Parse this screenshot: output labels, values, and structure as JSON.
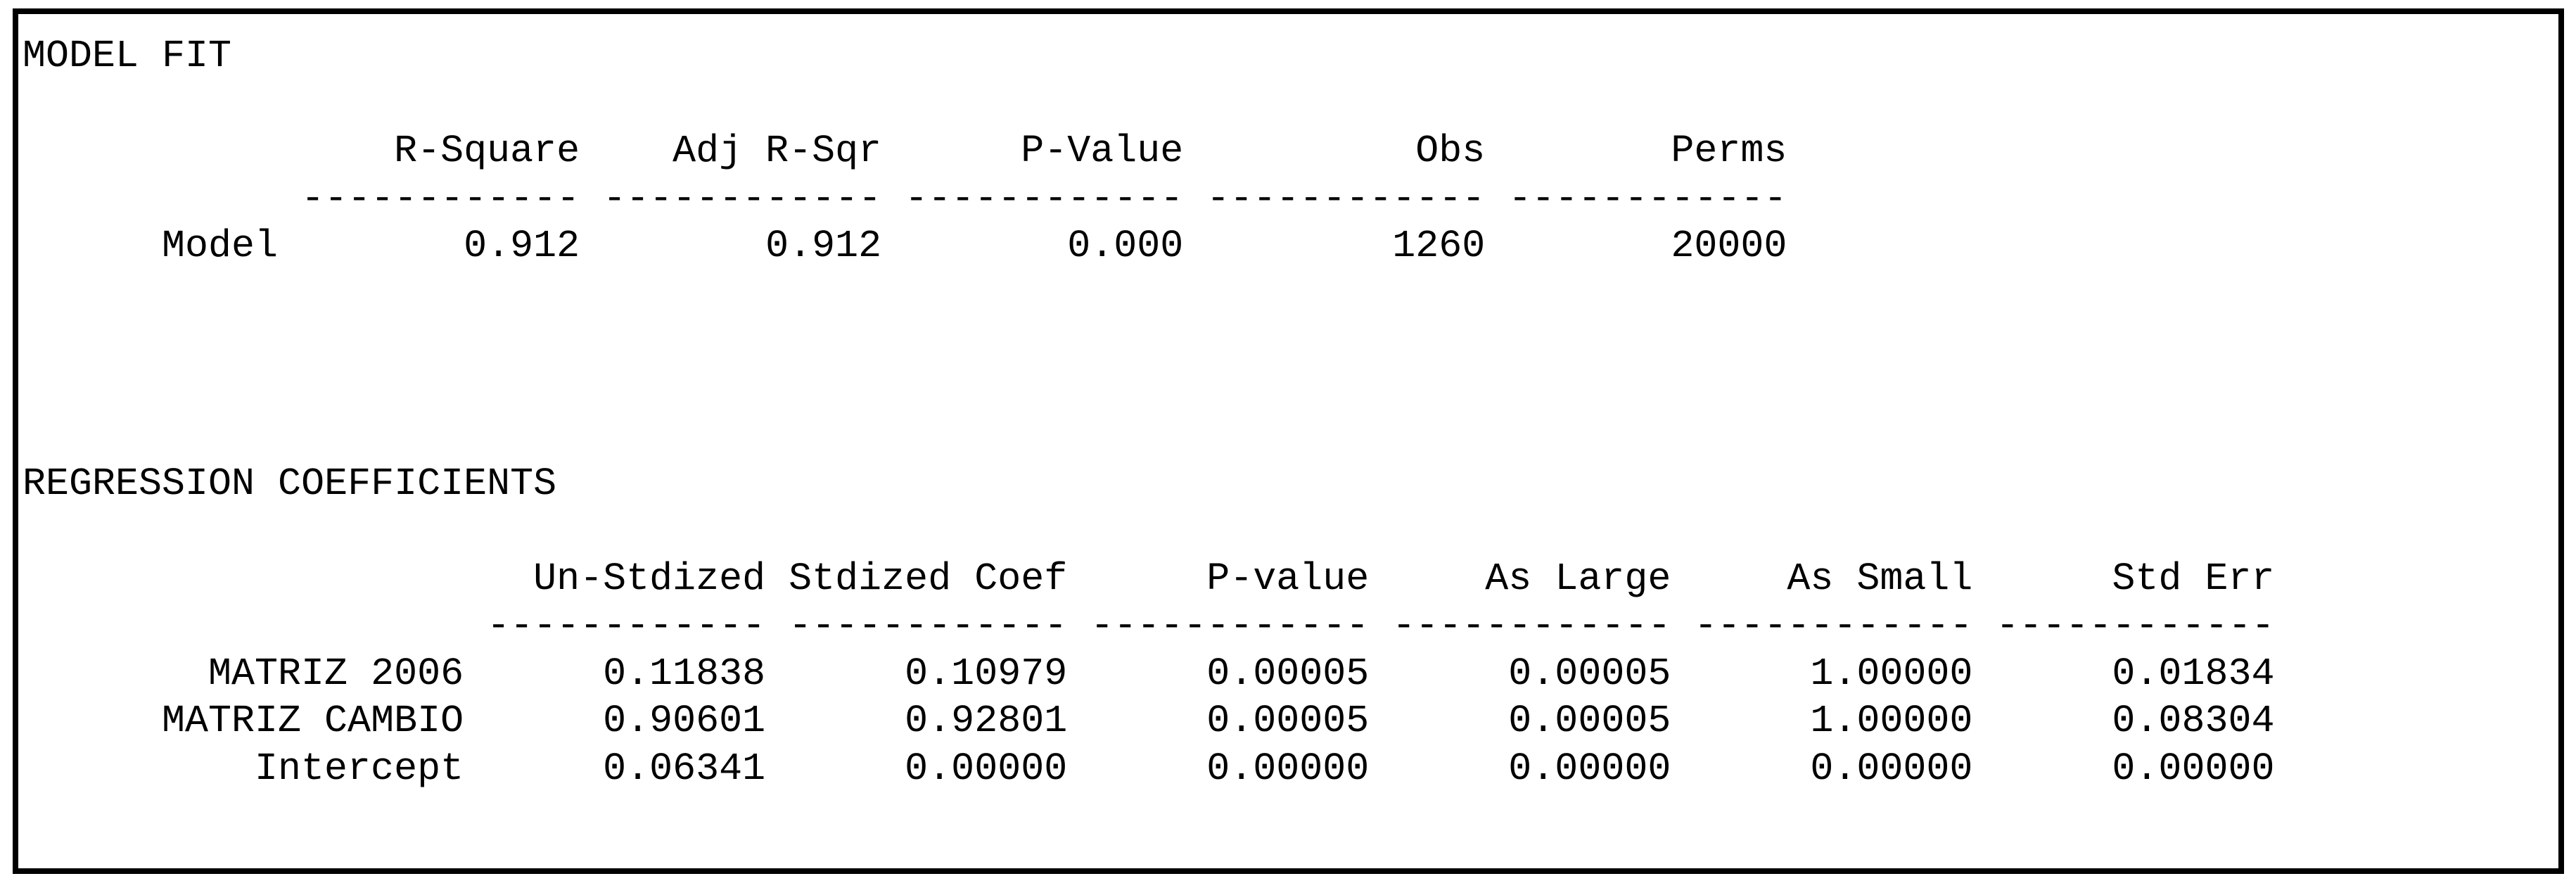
{
  "colors": {
    "text": "#000000",
    "border": "#000000",
    "background": "#ffffff"
  },
  "model_fit": {
    "title": "MODEL FIT",
    "columns": [
      "R-Square",
      "Adj R-Sqr",
      "P-Value",
      "Obs",
      "Perms"
    ],
    "dash": "------------",
    "rows": [
      {
        "label": "Model",
        "values": [
          "0.912",
          "0.912",
          "0.000",
          "1260",
          "20000"
        ]
      }
    ]
  },
  "regression": {
    "title": "REGRESSION COEFFICIENTS",
    "columns": [
      "Un-Stdized",
      "Stdized Coef",
      "P-value",
      "As Large",
      "As Small",
      "Std Err"
    ],
    "dash": "------------",
    "rows": [
      {
        "label": "MATRIZ 2006",
        "values": [
          "0.11838",
          "0.10979",
          "0.00005",
          "0.00005",
          "1.00000",
          "0.01834"
        ]
      },
      {
        "label": "MATRIZ CAMBIO",
        "values": [
          "0.90601",
          "0.92801",
          "0.00005",
          "0.00005",
          "1.00000",
          "0.08304"
        ]
      },
      {
        "label": "Intercept",
        "values": [
          "0.06341",
          "0.00000",
          "0.00000",
          "0.00000",
          "0.00000",
          "0.00000"
        ]
      }
    ]
  },
  "chart_data": [
    {
      "type": "table",
      "title": "MODEL FIT",
      "columns": [
        "",
        "R-Square",
        "Adj R-Sqr",
        "P-Value",
        "Obs",
        "Perms"
      ],
      "rows": [
        [
          "Model",
          0.912,
          0.912,
          0.0,
          1260,
          20000
        ]
      ]
    },
    {
      "type": "table",
      "title": "REGRESSION COEFFICIENTS",
      "columns": [
        "",
        "Un-Stdized",
        "Stdized Coef",
        "P-value",
        "As Large",
        "As Small",
        "Std Err"
      ],
      "rows": [
        [
          "MATRIZ 2006",
          0.11838,
          0.10979,
          5e-05,
          5e-05,
          1.0,
          0.01834
        ],
        [
          "MATRIZ CAMBIO",
          0.90601,
          0.92801,
          5e-05,
          5e-05,
          1.0,
          0.08304
        ],
        [
          "Intercept",
          0.06341,
          0.0,
          0.0,
          0.0,
          0.0,
          0.0
        ]
      ]
    }
  ]
}
